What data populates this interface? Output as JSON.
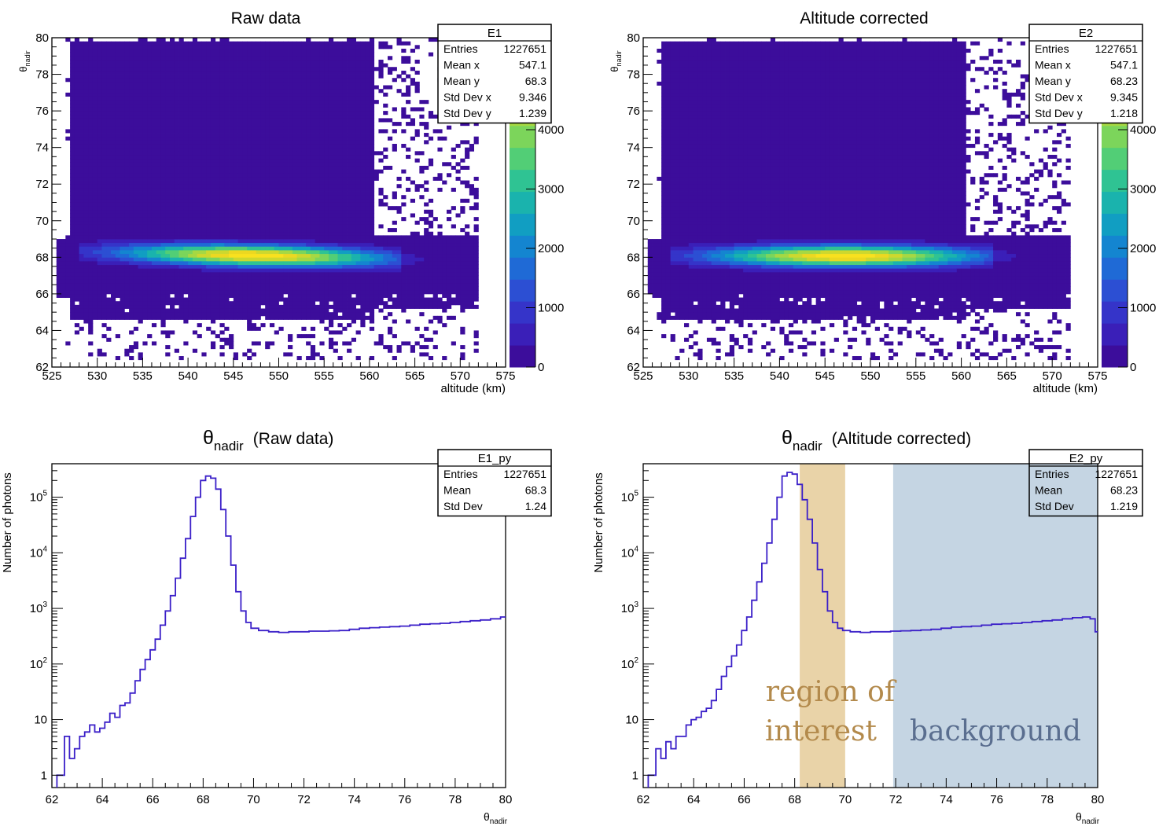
{
  "colors": {
    "hist_line": "#3a1fc8",
    "roi_band": "#e9d3a8",
    "roi_text": "#b38a4c",
    "bg_band": "#c5d5e3",
    "bg_text": "#5a6e8f",
    "palette_low": "#3c0d9b",
    "palette_high": "#f9e11e"
  },
  "chart_data": [
    {
      "type": "heatmap",
      "title": "Raw data",
      "xlabel": "altitude (km)",
      "ylabel_main": "θ",
      "ylabel_sub": "nadir",
      "xlim": [
        525,
        575
      ],
      "ylim": [
        62,
        80
      ],
      "x_ticks": [
        "525",
        "530",
        "535",
        "540",
        "545",
        "550",
        "555",
        "560",
        "565",
        "570",
        "575"
      ],
      "y_ticks": [
        "62",
        "64",
        "66",
        "68",
        "70",
        "72",
        "74",
        "76",
        "78",
        "80"
      ],
      "colorbar_ticks": [
        "0",
        "1000",
        "2000",
        "3000",
        "4000"
      ],
      "band": {
        "x0": 525.5,
        "x1": 573.5,
        "y0": 65.6,
        "y1": 69.0,
        "center_start": 68.35,
        "center_end": 67.8
      },
      "stats": {
        "name": "E1",
        "rows": [
          {
            "label": "Entries",
            "value": "1227651"
          },
          {
            "label": "Mean x",
            "value": "547.1"
          },
          {
            "label": "Mean y",
            "value": "68.3"
          },
          {
            "label": "Std Dev x",
            "value": "9.346"
          },
          {
            "label": "Std Dev y",
            "value": "1.239"
          }
        ]
      }
    },
    {
      "type": "heatmap",
      "title": "Altitude corrected",
      "xlabel": "altitude (km)",
      "ylabel_main": "θ",
      "ylabel_sub": "nadir",
      "xlim": [
        525,
        575
      ],
      "ylim": [
        62,
        80
      ],
      "x_ticks": [
        "525",
        "530",
        "535",
        "540",
        "545",
        "550",
        "555",
        "560",
        "565",
        "570",
        "575"
      ],
      "y_ticks": [
        "62",
        "64",
        "66",
        "68",
        "70",
        "72",
        "74",
        "76",
        "78",
        "80"
      ],
      "colorbar_ticks": [
        "0",
        "1000",
        "2000",
        "3000",
        "4000"
      ],
      "band": {
        "x0": 525.5,
        "x1": 573.5,
        "y0": 65.6,
        "y1": 69.0,
        "center_start": 68.1,
        "center_end": 68.05
      },
      "stats": {
        "name": "E2",
        "rows": [
          {
            "label": "Entries",
            "value": "1227651"
          },
          {
            "label": "Mean x",
            "value": "547.1"
          },
          {
            "label": "Mean y",
            "value": "68.23"
          },
          {
            "label": "Std Dev x",
            "value": "9.345"
          },
          {
            "label": "Std Dev y",
            "value": "1.218"
          }
        ]
      }
    },
    {
      "type": "line",
      "title_main": "θ",
      "title_sub": "nadir",
      "title_rest": "(Raw data)",
      "xlabel_main": "θ",
      "xlabel_sub": "nadir",
      "ylabel": "Number of photons",
      "log_y": true,
      "xlim": [
        62,
        80
      ],
      "ylim": [
        0.6,
        400000
      ],
      "x_ticks": [
        "62",
        "64",
        "66",
        "68",
        "70",
        "72",
        "74",
        "76",
        "78",
        "80"
      ],
      "y_ticks": [
        {
          "value": 1,
          "label": "1"
        },
        {
          "value": 10,
          "label": "10"
        },
        {
          "value": 100,
          "label": "10^2"
        },
        {
          "value": 1000,
          "label": "10^3"
        },
        {
          "value": 10000,
          "label": "10^4"
        },
        {
          "value": 100000,
          "label": "10^5"
        }
      ],
      "x": [
        62.4,
        62.6,
        62.8,
        63.0,
        63.2,
        63.4,
        63.6,
        63.8,
        64.0,
        64.2,
        64.4,
        64.6,
        64.8,
        65.0,
        65.2,
        65.4,
        65.6,
        65.8,
        66.0,
        66.2,
        66.4,
        66.6,
        66.8,
        67.0,
        67.2,
        67.4,
        67.6,
        67.8,
        68.0,
        68.2,
        68.4,
        68.6,
        68.8,
        69.0,
        69.2,
        69.4,
        69.6,
        69.8,
        70.0,
        70.4,
        70.8,
        71.2,
        71.6,
        72.0,
        72.4,
        72.8,
        73.2,
        73.6,
        74.0,
        74.4,
        74.8,
        75.2,
        75.6,
        76.0,
        76.4,
        76.8,
        77.2,
        77.6,
        78.0,
        78.4,
        78.8,
        79.2,
        79.6,
        80.0
      ],
      "values": [
        1,
        5,
        2,
        3,
        5,
        6,
        8,
        6,
        7,
        9,
        13,
        11,
        18,
        20,
        30,
        50,
        80,
        120,
        180,
        280,
        500,
        900,
        1700,
        3500,
        8000,
        18000,
        45000,
        100000,
        200000,
        240000,
        220000,
        140000,
        60000,
        20000,
        6000,
        2000,
        900,
        560,
        440,
        400,
        380,
        370,
        380,
        380,
        390,
        390,
        395,
        400,
        420,
        440,
        450,
        460,
        470,
        480,
        500,
        520,
        530,
        540,
        560,
        580,
        600,
        620,
        650,
        700
      ],
      "stats": {
        "name": "E1_py",
        "rows": [
          {
            "label": "Entries",
            "value": "1227651"
          },
          {
            "label": "Mean",
            "value": "68.3"
          },
          {
            "label": "Std Dev",
            "value": "1.24"
          }
        ]
      }
    },
    {
      "type": "line",
      "title_main": "θ",
      "title_sub": "nadir",
      "title_rest": "(Altitude corrected)",
      "xlabel_main": "θ",
      "xlabel_sub": "nadir",
      "ylabel": "Number of photons",
      "log_y": true,
      "xlim": [
        62,
        80
      ],
      "ylim": [
        0.6,
        400000
      ],
      "x_ticks": [
        "62",
        "64",
        "66",
        "68",
        "70",
        "72",
        "74",
        "76",
        "78",
        "80"
      ],
      "y_ticks": [
        {
          "value": 1,
          "label": "1"
        },
        {
          "value": 10,
          "label": "10"
        },
        {
          "value": 100,
          "label": "10^2"
        },
        {
          "value": 1000,
          "label": "10^3"
        },
        {
          "value": 10000,
          "label": "10^4"
        },
        {
          "value": 100000,
          "label": "10^5"
        }
      ],
      "x": [
        62.4,
        62.6,
        62.8,
        63.0,
        63.2,
        63.4,
        63.6,
        63.8,
        64.0,
        64.2,
        64.4,
        64.6,
        64.8,
        65.0,
        65.2,
        65.4,
        65.6,
        65.8,
        66.0,
        66.2,
        66.4,
        66.6,
        66.8,
        67.0,
        67.2,
        67.4,
        67.6,
        67.8,
        68.0,
        68.2,
        68.4,
        68.6,
        68.8,
        69.0,
        69.2,
        69.4,
        69.6,
        69.8,
        70.0,
        70.4,
        70.8,
        71.2,
        71.6,
        72.0,
        72.4,
        72.8,
        73.2,
        73.6,
        74.0,
        74.4,
        74.8,
        75.2,
        75.6,
        76.0,
        76.4,
        76.8,
        77.2,
        77.6,
        78.0,
        78.4,
        78.8,
        79.2,
        79.6,
        79.8,
        80.0
      ],
      "values": [
        1,
        3,
        2,
        4,
        3,
        5,
        5,
        8,
        10,
        11,
        14,
        16,
        22,
        35,
        60,
        90,
        140,
        220,
        400,
        700,
        1400,
        3000,
        6500,
        15000,
        40000,
        100000,
        240000,
        280000,
        260000,
        170000,
        90000,
        40000,
        15000,
        5000,
        2000,
        900,
        560,
        440,
        400,
        380,
        370,
        380,
        380,
        390,
        395,
        400,
        410,
        420,
        440,
        460,
        470,
        480,
        500,
        520,
        530,
        540,
        560,
        580,
        600,
        620,
        650,
        680,
        700,
        650,
        380
      ],
      "regions": [
        {
          "x0": 68.2,
          "x1": 70.0,
          "label_line1": "region of",
          "label_line2": "interest",
          "kind": "roi"
        },
        {
          "x0": 71.9,
          "x1": 80.0,
          "label_line1": "background",
          "label_line2": "",
          "kind": "bg"
        }
      ],
      "stats": {
        "name": "E2_py",
        "rows": [
          {
            "label": "Entries",
            "value": "1227651"
          },
          {
            "label": "Mean",
            "value": "68.23"
          },
          {
            "label": "Std Dev",
            "value": "1.219"
          }
        ]
      }
    }
  ]
}
